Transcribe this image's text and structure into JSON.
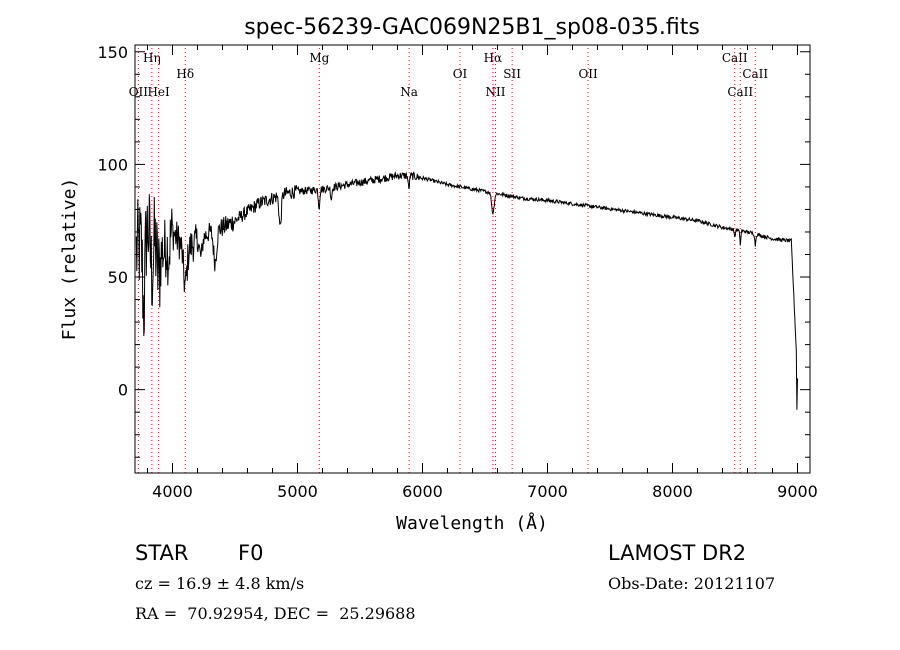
{
  "chart_data": {
    "type": "line",
    "title": "spec-56239-GAC069N25B1_sp08-035.fits",
    "xlabel": "Wavelength (Å)",
    "ylabel": "Flux (relative)",
    "xlim": [
      3700,
      9100
    ],
    "ylim": [
      -37,
      153
    ],
    "xticks": [
      4000,
      5000,
      6000,
      7000,
      8000,
      9000
    ],
    "yticks": [
      0,
      50,
      100,
      150
    ],
    "grid": false,
    "series": [
      {
        "name": "spectrum",
        "control_points": [
          [
            3700,
            60
          ],
          [
            3750,
            65
          ],
          [
            3800,
            72
          ],
          [
            3850,
            76
          ],
          [
            3900,
            78
          ],
          [
            3950,
            74
          ],
          [
            4000,
            70
          ],
          [
            4100,
            62
          ],
          [
            4200,
            66
          ],
          [
            4300,
            70
          ],
          [
            4400,
            72
          ],
          [
            4500,
            75
          ],
          [
            4600,
            79
          ],
          [
            4700,
            83
          ],
          [
            4800,
            85
          ],
          [
            4900,
            87
          ],
          [
            5000,
            88
          ],
          [
            5200,
            89
          ],
          [
            5400,
            91
          ],
          [
            5600,
            93
          ],
          [
            5800,
            95
          ],
          [
            5900,
            95
          ],
          [
            6000,
            94
          ],
          [
            6200,
            91
          ],
          [
            6400,
            89
          ],
          [
            6600,
            87
          ],
          [
            6800,
            85
          ],
          [
            7000,
            84
          ],
          [
            7400,
            81
          ],
          [
            7800,
            78
          ],
          [
            8200,
            75
          ],
          [
            8400,
            72
          ],
          [
            8600,
            70
          ],
          [
            8800,
            67
          ],
          [
            8950,
            66
          ],
          [
            9000,
            5
          ]
        ],
        "absorption_features": [
          [
            3770,
            32,
            25
          ],
          [
            3835,
            22,
            35
          ],
          [
            3889,
            26,
            55
          ],
          [
            3934,
            12,
            40
          ],
          [
            3968,
            12,
            30
          ],
          [
            4101,
            16,
            40
          ],
          [
            4227,
            8,
            30
          ],
          [
            4340,
            14,
            35
          ],
          [
            4861,
            14,
            25
          ],
          [
            5172,
            8,
            15
          ],
          [
            5270,
            5,
            15
          ],
          [
            5890,
            6,
            15
          ],
          [
            6563,
            9,
            28
          ],
          [
            8498,
            4,
            10
          ],
          [
            8542,
            6,
            12
          ],
          [
            8662,
            5,
            12
          ]
        ]
      }
    ],
    "line_markers": [
      {
        "label": "OII",
        "x": 3727,
        "row": 3
      },
      {
        "label": "Hη",
        "x": 3835,
        "row": 1
      },
      {
        "label": "HeI",
        "x": 3889,
        "row": 3
      },
      {
        "label": "Hδ",
        "x": 4102,
        "row": 2
      },
      {
        "label": "Mg",
        "x": 5175,
        "row": 1
      },
      {
        "label": "Na",
        "x": 5893,
        "row": 3
      },
      {
        "label": "OI",
        "x": 6300,
        "row": 2
      },
      {
        "label": "Hα",
        "x": 6563,
        "row": 1
      },
      {
        "label": "NII",
        "x": 6584,
        "row": 3
      },
      {
        "label": "SII",
        "x": 6717,
        "row": 2
      },
      {
        "label": "OII",
        "x": 7325,
        "row": 2
      },
      {
        "label": "CaII",
        "x": 8498,
        "row": 1
      },
      {
        "label": "CaII",
        "x": 8542,
        "row": 3
      },
      {
        "label": "CaII",
        "x": 8662,
        "row": 2
      }
    ],
    "colors": {
      "spectrum": "#000000",
      "marker": "#ff0000"
    }
  },
  "info": {
    "class_label": "STAR",
    "subclass": "F0",
    "survey": "LAMOST DR2",
    "cz": "cz = 16.9 ± 4.8 km/s",
    "obs_date": "Obs-Date: 20121107",
    "coords": "RA =  70.92954, DEC =  25.29688"
  }
}
